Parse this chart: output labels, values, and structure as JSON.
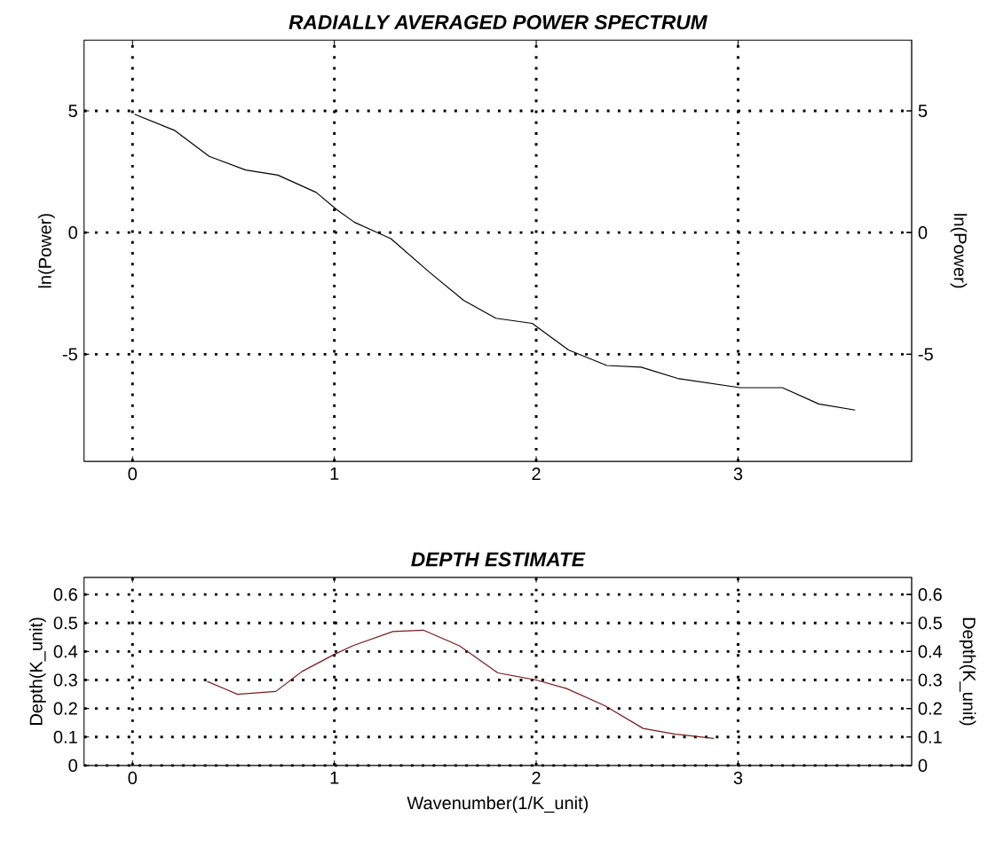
{
  "chart_data": [
    {
      "type": "line",
      "title": "RADIALLY AVERAGED POWER SPECTRUM",
      "ylabel": "ln(Power)",
      "y2label": "ln(Power)",
      "x": [
        0.01,
        0.21,
        0.38,
        0.56,
        0.72,
        0.91,
        1.01,
        1.1,
        1.28,
        1.47,
        1.64,
        1.8,
        1.98,
        2.16,
        2.35,
        2.52,
        2.7,
        3.01,
        3.22,
        3.4,
        3.58
      ],
      "series": [
        {
          "color": "#000000",
          "values": [
            4.86,
            4.19,
            3.13,
            2.57,
            2.36,
            1.65,
            0.95,
            0.42,
            -0.25,
            -1.62,
            -2.78,
            -3.52,
            -3.73,
            -4.82,
            -5.46,
            -5.53,
            -5.99,
            -6.37,
            -6.37,
            -7.04,
            -7.29
          ]
        }
      ],
      "xlim": [
        -0.24,
        3.86
      ],
      "xticks": [
        0,
        1,
        2,
        3
      ],
      "ylim": [
        -9.4,
        7.9
      ],
      "yticks": [
        -5,
        0,
        5
      ],
      "y2lim": [
        -9.4,
        7.9
      ],
      "y2ticks": [
        -5,
        0,
        5
      ],
      "grid": true,
      "line_style": "solid",
      "marker": "none"
    },
    {
      "type": "line",
      "title": "DEPTH ESTIMATE",
      "xlabel": "Wavenumber(1/K_unit)",
      "ylabel": "Depth(K_unit)",
      "y2label": "Depth(K_unit)",
      "x": [
        0.37,
        0.52,
        0.71,
        0.84,
        1.0,
        1.09,
        1.29,
        1.44,
        1.62,
        1.81,
        2.0,
        2.15,
        2.34,
        2.53,
        2.69,
        2.88
      ],
      "series": [
        {
          "color": "#7b1a1a",
          "values": [
            0.295,
            0.25,
            0.26,
            0.33,
            0.39,
            0.42,
            0.47,
            0.475,
            0.42,
            0.325,
            0.3,
            0.27,
            0.21,
            0.13,
            0.11,
            0.095
          ]
        }
      ],
      "xlim": [
        -0.24,
        3.86
      ],
      "xticks": [
        0,
        1,
        2,
        3
      ],
      "ylim": [
        0,
        0.66
      ],
      "yticks": [
        0,
        0.1,
        0.2,
        0.3,
        0.4,
        0.5,
        0.6
      ],
      "y2lim": [
        0,
        0.66
      ],
      "y2ticks": [
        0,
        0.1,
        0.2,
        0.3,
        0.4,
        0.5,
        0.6
      ],
      "grid": true,
      "line_style": "solid",
      "marker": "none"
    }
  ]
}
